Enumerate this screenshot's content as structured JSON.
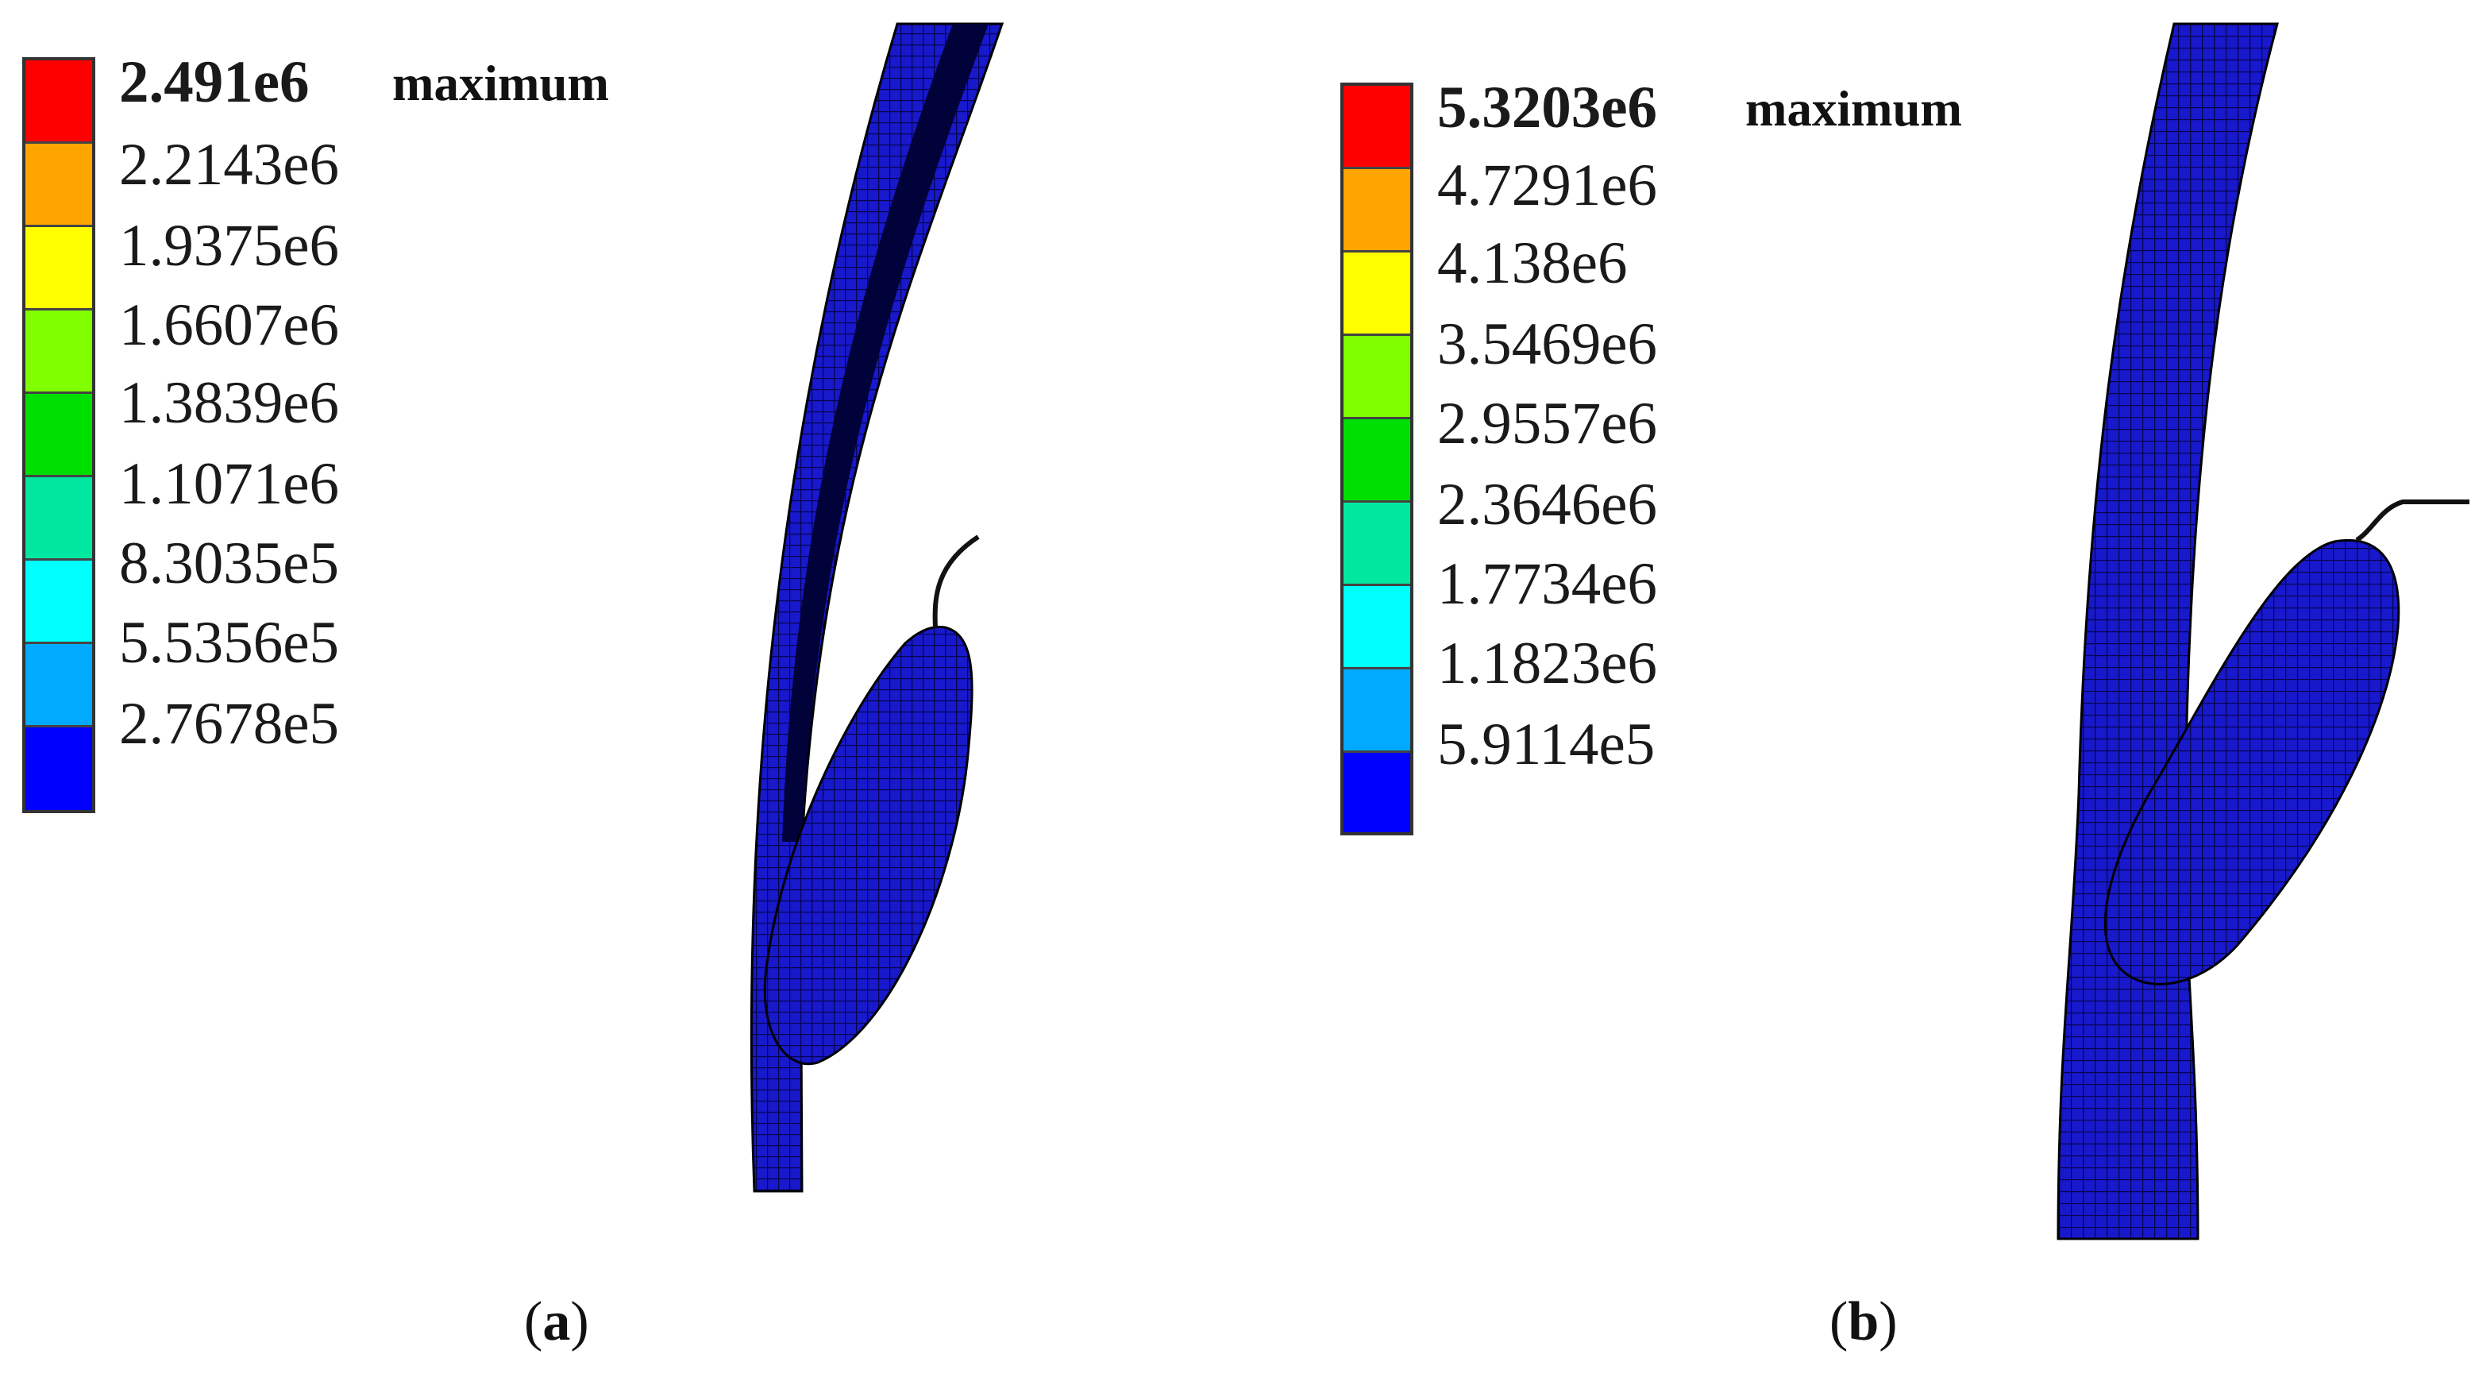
{
  "legend_colors": [
    "#ff0000",
    "#ffa500",
    "#ffff00",
    "#80ff00",
    "#00e000",
    "#00e8a0",
    "#00ffff",
    "#00aaff",
    "#0000ff"
  ],
  "mesh_color": "#1414c8",
  "panels": [
    {
      "id": "a",
      "legend_values": [
        "2.491e6",
        "2.2143e6",
        "1.9375e6",
        "1.6607e6",
        "1.3839e6",
        "1.1071e6",
        "8.3035e5",
        "5.5356e5",
        "2.7678e5"
      ],
      "max_label": "maximum",
      "caption_open": "(",
      "caption_letter": "a",
      "caption_close": ")"
    },
    {
      "id": "b",
      "legend_values": [
        "5.3203e6",
        "4.7291e6",
        "4.138e6",
        "3.5469e6",
        "2.9557e6",
        "2.3646e6",
        "1.7734e6",
        "1.1823e6",
        "5.9114e5"
      ],
      "max_label": "maximum",
      "caption_open": "(",
      "caption_letter": "b",
      "caption_close": ")"
    }
  ]
}
